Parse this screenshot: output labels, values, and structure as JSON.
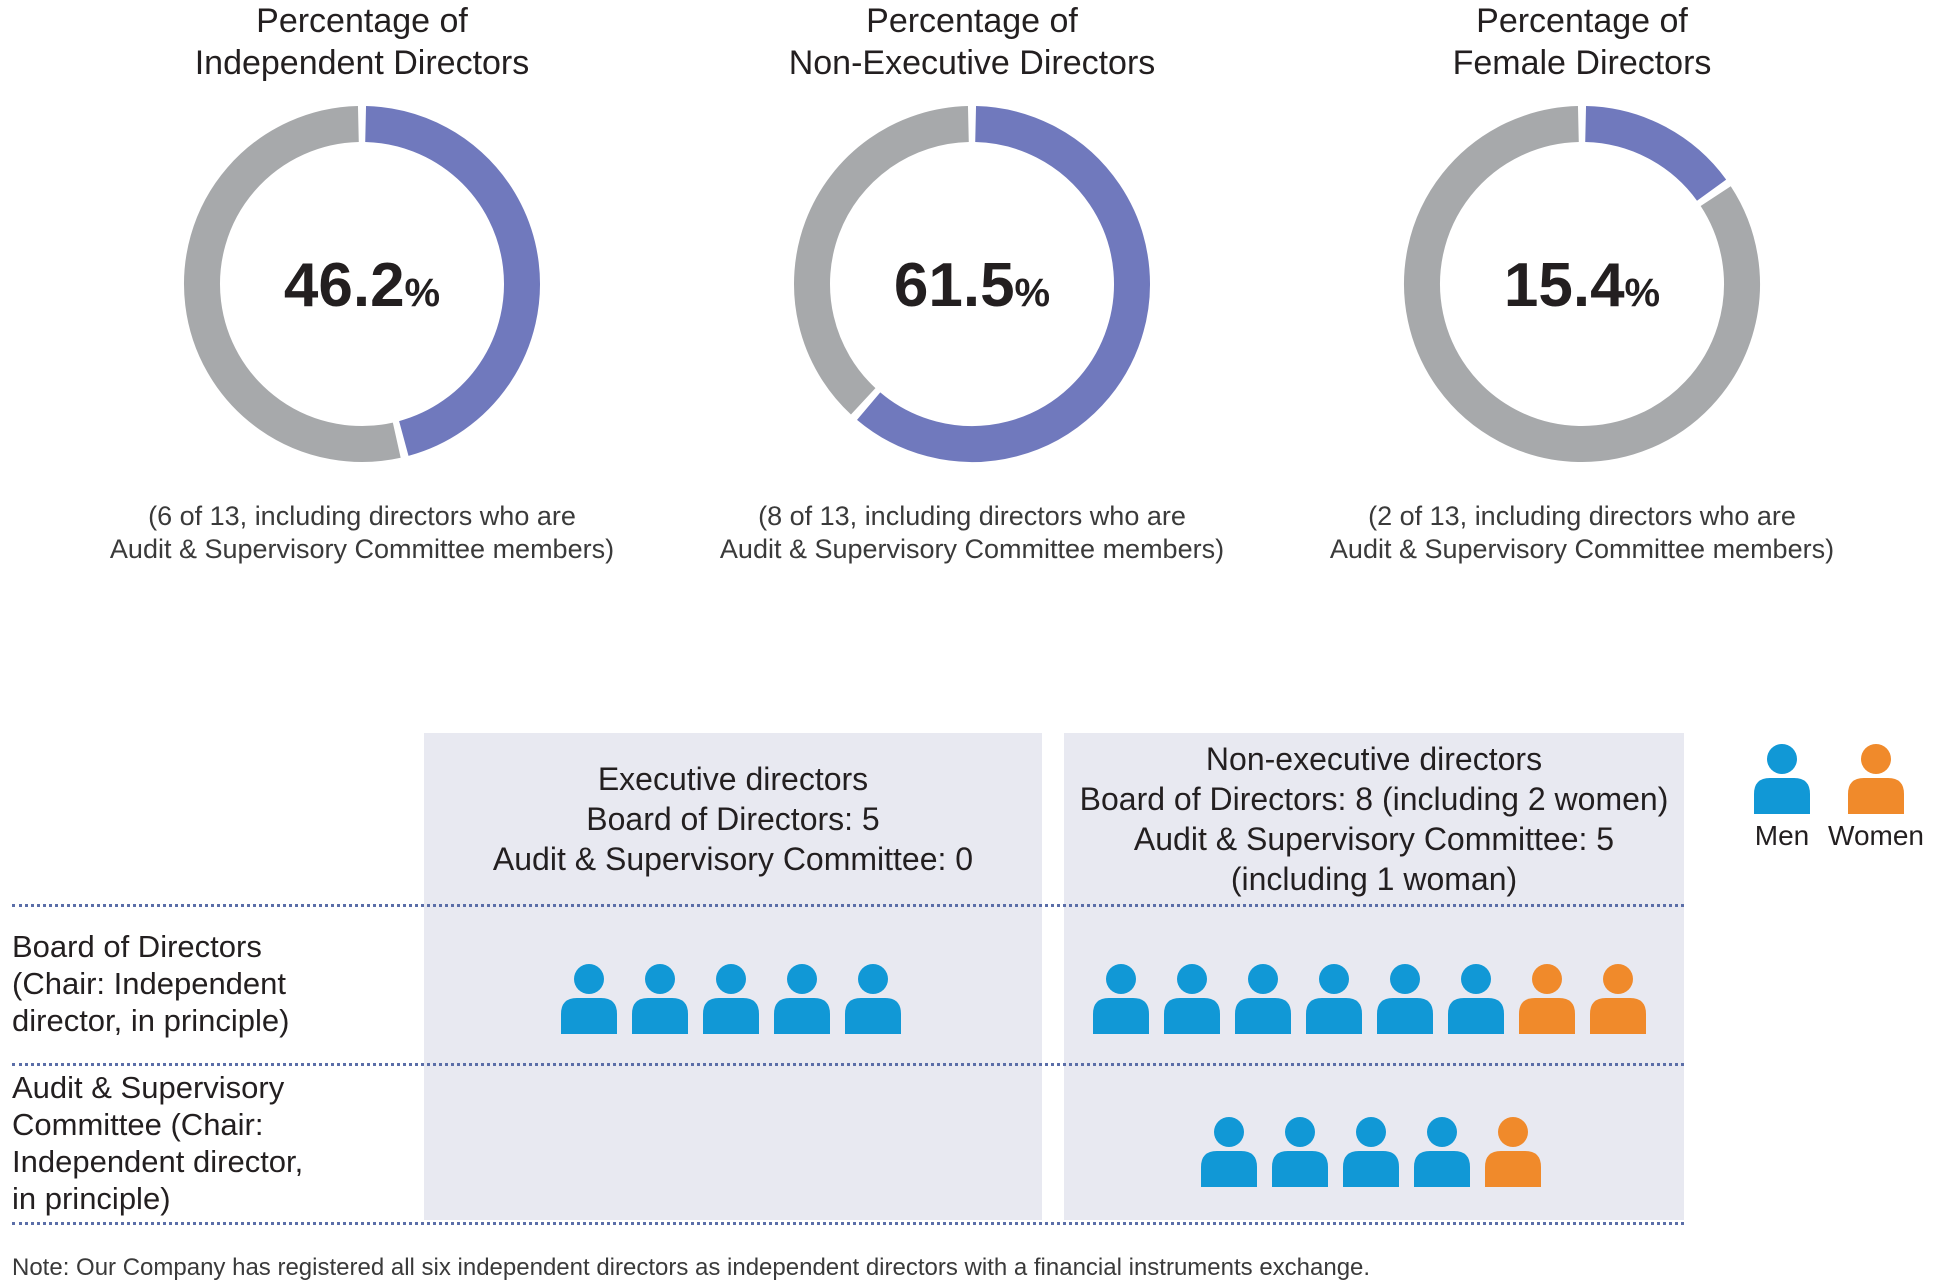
{
  "chart_data": [
    {
      "type": "pie",
      "title_lines": [
        "Percentage of",
        "Independent Directors"
      ],
      "percent": "46.2",
      "percent_sign": "%",
      "value": 6,
      "total": 13,
      "note_lines": [
        "(6 of 13, including directors who are",
        "Audit & Supervisory Committee members)"
      ]
    },
    {
      "type": "pie",
      "title_lines": [
        "Percentage of",
        "Non-Executive Directors"
      ],
      "percent": "61.5",
      "percent_sign": "%",
      "value": 8,
      "total": 13,
      "note_lines": [
        "(8 of 13, including directors who are",
        "Audit & Supervisory Committee members)"
      ]
    },
    {
      "type": "pie",
      "title_lines": [
        "Percentage of",
        "Female Directors"
      ],
      "percent": "15.4",
      "percent_sign": "%",
      "value": 2,
      "total": 13,
      "note_lines": [
        "(2 of 13, including directors who are",
        "Audit & Supervisory Committee members)"
      ]
    }
  ],
  "colors": {
    "highlight": "#7079bd",
    "remainder": "#a7a9ab",
    "men": "#1198d6",
    "women": "#f08a2b",
    "panel": "#e8e9f1",
    "dotline": "#5b6ea8"
  },
  "composition": {
    "executive_header": [
      "Executive directors",
      "Board of Directors: 5",
      "Audit & Supervisory Committee: 0"
    ],
    "nonexecutive_header": [
      "Non-executive directors",
      "Board of Directors: 8 (including 2 women)",
      "Audit & Supervisory Committee: 5",
      "(including 1 woman)"
    ],
    "rows": [
      {
        "label_lines": [
          "Board of Directors",
          "(Chair: Independent",
          "director, in principle)"
        ],
        "executive": {
          "men": 5,
          "women": 0
        },
        "nonexecutive": {
          "men": 6,
          "women": 2
        }
      },
      {
        "label_lines": [
          "Audit & Supervisory",
          "Committee (Chair:",
          "Independent director,",
          "in principle)"
        ],
        "executive": {
          "men": 0,
          "women": 0
        },
        "nonexecutive": {
          "men": 4,
          "women": 1
        }
      }
    ],
    "legend": {
      "men": "Men",
      "women": "Women",
      "men_icon": "person-icon",
      "women_icon": "person-icon"
    }
  },
  "note": "Note: Our Company has registered all six independent directors as independent directors with a financial instruments exchange."
}
